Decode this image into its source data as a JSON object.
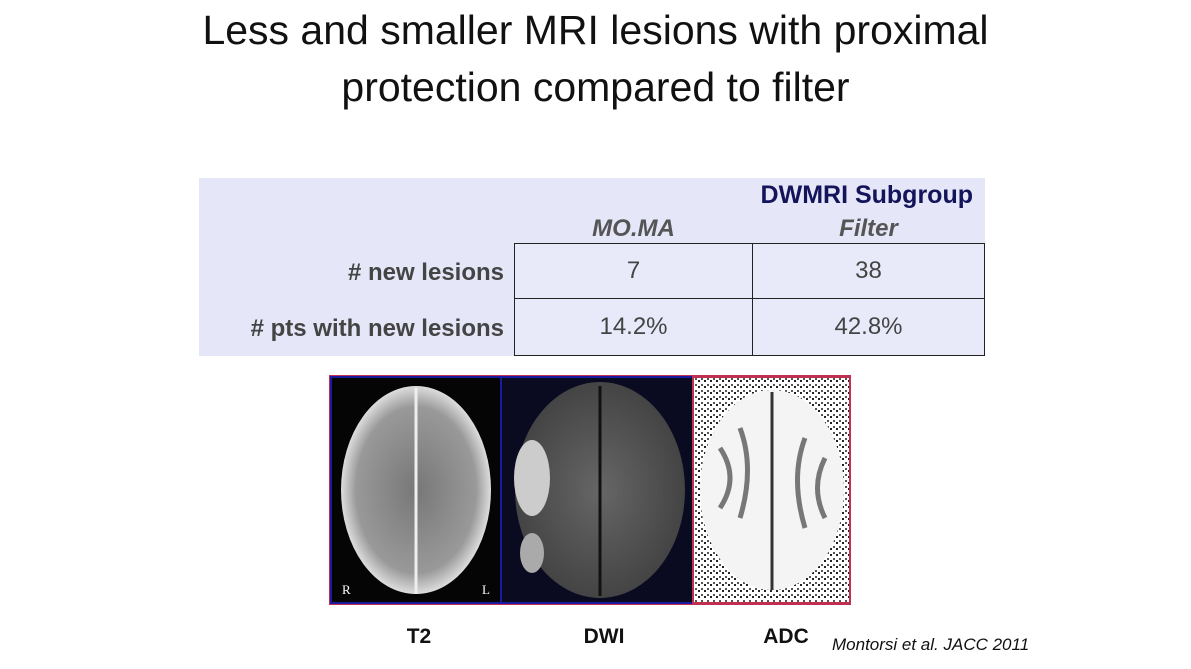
{
  "title": [
    "Less and smaller MRI lesions with proximal",
    "protection compared to filter"
  ],
  "table": {
    "group": "DWMRI Subgroup",
    "columns": [
      "MO.MA",
      "Filter"
    ],
    "rows": [
      {
        "label": "# new lesions",
        "cells": [
          "7",
          "38"
        ]
      },
      {
        "label": "# pts with new lesions",
        "cells": [
          "14.2%",
          "42.8%"
        ]
      }
    ]
  },
  "images": {
    "panels": [
      "T2",
      "DWI",
      "ADC"
    ],
    "orientation": [
      "R",
      "L"
    ]
  },
  "citation": "Montorsi et al. JACC 2011"
}
